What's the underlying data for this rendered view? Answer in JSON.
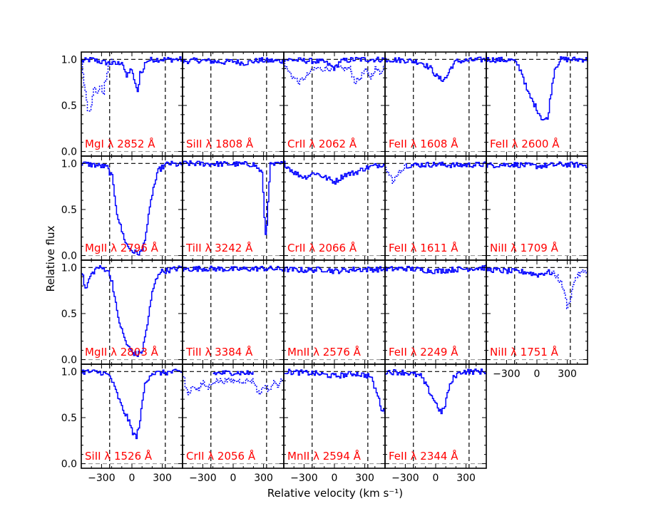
{
  "chart_data": {
    "type": "line",
    "xlabel": "Relative velocity (km s⁻¹)",
    "ylabel": "Relative flux",
    "xlim": [
      -500,
      500
    ],
    "ylim": [
      -0.05,
      1.08
    ],
    "x_ticks": [
      -300,
      0,
      300
    ],
    "x_tick_labels": [
      "−300",
      "0",
      "300"
    ],
    "y_ticks": [
      0.0,
      0.5,
      1.0
    ],
    "y_tick_labels": [
      "0.0",
      "0.5",
      "1.0"
    ],
    "integration_window_kms": [
      -220,
      330
    ],
    "continuum_level": 1.0,
    "series_color": "#0000ff",
    "label_color": "#ff0000",
    "panels": [
      {
        "label": "MgI λ 2852 Å",
        "row": 0,
        "col": 0,
        "profile": [
          [
            -500,
            0.98
          ],
          [
            -400,
            1.0
          ],
          [
            -300,
            0.97
          ],
          [
            -150,
            0.95
          ],
          [
            -100,
            0.98
          ],
          [
            -60,
            0.8
          ],
          [
            -20,
            0.9
          ],
          [
            20,
            0.78
          ],
          [
            50,
            0.62
          ],
          [
            80,
            0.9
          ],
          [
            100,
            0.85
          ],
          [
            130,
            0.98
          ],
          [
            200,
            1.0
          ],
          [
            500,
            1.0
          ]
        ],
        "contaminated": [
          [
            -500,
            0.95
          ],
          [
            -470,
            0.7
          ],
          [
            -440,
            0.45
          ],
          [
            -420,
            0.4
          ],
          [
            -400,
            0.55
          ],
          [
            -370,
            0.7
          ],
          [
            -340,
            0.62
          ],
          [
            -310,
            0.72
          ],
          [
            -290,
            0.6
          ],
          [
            -270,
            0.75
          ],
          [
            -240,
            0.92
          ],
          [
            -200,
            1.0
          ]
        ]
      },
      {
        "label": "SiII λ 1808 Å",
        "row": 0,
        "col": 1,
        "profile": [
          [
            -500,
            0.98
          ],
          [
            -350,
            0.99
          ],
          [
            -100,
            0.97
          ],
          [
            0,
            0.98
          ],
          [
            100,
            0.96
          ],
          [
            250,
            0.99
          ],
          [
            500,
            0.98
          ]
        ]
      },
      {
        "label": "CrII λ 2062 Å",
        "row": 0,
        "col": 2,
        "profile": [
          [
            -500,
            1.0
          ],
          [
            -200,
            0.98
          ],
          [
            -100,
            0.97
          ],
          [
            0,
            0.9
          ],
          [
            50,
            0.98
          ],
          [
            200,
            1.0
          ],
          [
            500,
            1.0
          ]
        ],
        "contaminated": [
          [
            -500,
            0.95
          ],
          [
            -450,
            0.85
          ],
          [
            -400,
            0.8
          ],
          [
            -350,
            0.75
          ],
          [
            -300,
            0.8
          ],
          [
            -250,
            0.85
          ],
          [
            -200,
            0.9
          ],
          [
            150,
            0.9
          ],
          [
            200,
            0.75
          ],
          [
            250,
            0.8
          ],
          [
            300,
            0.88
          ],
          [
            350,
            0.8
          ],
          [
            400,
            0.9
          ],
          [
            450,
            0.85
          ],
          [
            500,
            0.95
          ]
        ]
      },
      {
        "label": "FeII λ 1608 Å",
        "row": 0,
        "col": 3,
        "profile": [
          [
            -500,
            1.0
          ],
          [
            -300,
            0.99
          ],
          [
            -150,
            0.97
          ],
          [
            -50,
            0.9
          ],
          [
            0,
            0.82
          ],
          [
            50,
            0.78
          ],
          [
            100,
            0.8
          ],
          [
            150,
            0.92
          ],
          [
            200,
            0.98
          ],
          [
            500,
            1.0
          ]
        ]
      },
      {
        "label": "FeII λ 2600 Å",
        "row": 0,
        "col": 4,
        "profile": [
          [
            -500,
            1.0
          ],
          [
            -250,
            0.99
          ],
          [
            -200,
            0.95
          ],
          [
            -150,
            0.85
          ],
          [
            -100,
            0.65
          ],
          [
            -50,
            0.55
          ],
          [
            0,
            0.45
          ],
          [
            50,
            0.35
          ],
          [
            100,
            0.35
          ],
          [
            130,
            0.6
          ],
          [
            170,
            0.9
          ],
          [
            230,
            1.0
          ],
          [
            500,
            1.0
          ]
        ]
      },
      {
        "label": "MgII λ 2796 Å",
        "row": 1,
        "col": 0,
        "profile": [
          [
            -500,
            1.0
          ],
          [
            -350,
            0.98
          ],
          [
            -250,
            0.96
          ],
          [
            -200,
            0.85
          ],
          [
            -150,
            0.45
          ],
          [
            -100,
            0.25
          ],
          [
            -50,
            0.1
          ],
          [
            0,
            0.05
          ],
          [
            50,
            0.02
          ],
          [
            100,
            0.05
          ],
          [
            150,
            0.35
          ],
          [
            200,
            0.7
          ],
          [
            260,
            0.93
          ],
          [
            350,
            1.0
          ],
          [
            500,
            0.98
          ]
        ]
      },
      {
        "label": "TiII λ 3242 Å",
        "row": 1,
        "col": 1,
        "profile": [
          [
            -500,
            1.0
          ],
          [
            200,
            0.99
          ],
          [
            280,
            0.9
          ],
          [
            300,
            0.5
          ],
          [
            320,
            0.15
          ],
          [
            340,
            0.6
          ],
          [
            360,
            0.98
          ],
          [
            500,
            1.0
          ]
        ]
      },
      {
        "label": "CrII λ 2066 Å",
        "row": 1,
        "col": 2,
        "profile": [
          [
            -500,
            1.0
          ],
          [
            -400,
            0.9
          ],
          [
            -300,
            0.85
          ],
          [
            -200,
            0.9
          ],
          [
            -100,
            0.85
          ],
          [
            0,
            0.8
          ],
          [
            100,
            0.88
          ],
          [
            200,
            0.9
          ],
          [
            300,
            0.95
          ],
          [
            500,
            1.0
          ]
        ]
      },
      {
        "label": "FeII λ 1611 Å",
        "row": 1,
        "col": 3,
        "profile": [
          [
            -300,
            0.98
          ],
          [
            0,
            0.99
          ],
          [
            200,
            0.98
          ],
          [
            500,
            0.99
          ]
        ],
        "contaminated": [
          [
            -500,
            0.95
          ],
          [
            -450,
            0.85
          ],
          [
            -420,
            0.8
          ],
          [
            -380,
            0.88
          ],
          [
            -330,
            0.95
          ],
          [
            -300,
            0.97
          ]
        ]
      },
      {
        "label": "NiII λ 1709 Å",
        "row": 1,
        "col": 4,
        "profile": [
          [
            -500,
            0.98
          ],
          [
            -250,
            0.99
          ],
          [
            0,
            0.97
          ],
          [
            250,
            0.99
          ],
          [
            500,
            0.98
          ]
        ]
      },
      {
        "label": "MgII λ 2803 Å",
        "row": 2,
        "col": 0,
        "profile": [
          [
            -500,
            0.95
          ],
          [
            -460,
            0.75
          ],
          [
            -420,
            0.9
          ],
          [
            -350,
            1.0
          ],
          [
            -250,
            0.98
          ],
          [
            -200,
            0.85
          ],
          [
            -150,
            0.5
          ],
          [
            -100,
            0.3
          ],
          [
            -50,
            0.15
          ],
          [
            0,
            0.08
          ],
          [
            50,
            0.05
          ],
          [
            100,
            0.1
          ],
          [
            150,
            0.4
          ],
          [
            200,
            0.75
          ],
          [
            260,
            0.95
          ],
          [
            500,
            1.0
          ]
        ]
      },
      {
        "label": "TiII λ 3384 Å",
        "row": 2,
        "col": 1,
        "profile": [
          [
            -500,
            0.98
          ],
          [
            -300,
            0.99
          ],
          [
            0,
            0.98
          ],
          [
            300,
            0.99
          ],
          [
            500,
            0.98
          ]
        ]
      },
      {
        "label": "MnII λ 2576 Å",
        "row": 2,
        "col": 2,
        "profile": [
          [
            -500,
            0.98
          ],
          [
            -300,
            0.97
          ],
          [
            -100,
            0.98
          ],
          [
            0,
            0.96
          ],
          [
            200,
            0.98
          ],
          [
            500,
            0.98
          ]
        ]
      },
      {
        "label": "FeII λ 2249 Å",
        "row": 2,
        "col": 3,
        "profile": [
          [
            -500,
            0.98
          ],
          [
            -300,
            0.99
          ],
          [
            0,
            0.96
          ],
          [
            200,
            0.98
          ],
          [
            500,
            1.0
          ]
        ]
      },
      {
        "label": "NiII λ 1751 Å",
        "row": 2,
        "col": 4,
        "profile": [
          [
            -500,
            0.98
          ],
          [
            -300,
            0.96
          ],
          [
            -100,
            0.95
          ],
          [
            0,
            0.92
          ],
          [
            100,
            0.95
          ],
          [
            150,
            0.94
          ]
        ],
        "contaminated": [
          [
            150,
            0.94
          ],
          [
            200,
            0.9
          ],
          [
            250,
            0.8
          ],
          [
            300,
            0.55
          ],
          [
            340,
            0.75
          ],
          [
            380,
            0.9
          ],
          [
            450,
            0.95
          ],
          [
            500,
            0.98
          ]
        ]
      },
      {
        "label": "SiII λ 1526 Å",
        "row": 3,
        "col": 0,
        "profile": [
          [
            -500,
            1.0
          ],
          [
            -300,
            0.99
          ],
          [
            -220,
            0.95
          ],
          [
            -150,
            0.75
          ],
          [
            -100,
            0.6
          ],
          [
            -50,
            0.5
          ],
          [
            0,
            0.35
          ],
          [
            40,
            0.28
          ],
          [
            80,
            0.5
          ],
          [
            120,
            0.85
          ],
          [
            180,
            0.98
          ],
          [
            500,
            1.0
          ]
        ]
      },
      {
        "label": "CrII λ 2056 Å",
        "row": 3,
        "col": 1,
        "profile": [
          [
            -200,
            0.98
          ],
          [
            0,
            0.99
          ],
          [
            200,
            0.98
          ]
        ],
        "contaminated": [
          [
            -500,
            0.95
          ],
          [
            -450,
            0.75
          ],
          [
            -400,
            0.85
          ],
          [
            -350,
            0.8
          ],
          [
            -300,
            0.88
          ],
          [
            -250,
            0.82
          ],
          [
            -200,
            0.9
          ],
          [
            200,
            0.9
          ],
          [
            250,
            0.75
          ],
          [
            300,
            0.85
          ],
          [
            350,
            0.8
          ],
          [
            400,
            0.88
          ],
          [
            450,
            0.85
          ],
          [
            500,
            0.95
          ]
        ]
      },
      {
        "label": "MnII λ 2594 Å",
        "row": 3,
        "col": 2,
        "profile": [
          [
            -500,
            1.0
          ],
          [
            -200,
            0.98
          ],
          [
            0,
            0.95
          ],
          [
            200,
            0.98
          ],
          [
            350,
            0.95
          ],
          [
            420,
            0.75
          ],
          [
            460,
            0.6
          ],
          [
            500,
            0.55
          ]
        ]
      },
      {
        "label": "FeII λ 2344 Å",
        "row": 3,
        "col": 3,
        "profile": [
          [
            -500,
            1.0
          ],
          [
            -300,
            0.99
          ],
          [
            -150,
            0.95
          ],
          [
            -100,
            0.85
          ],
          [
            -50,
            0.75
          ],
          [
            0,
            0.65
          ],
          [
            50,
            0.55
          ],
          [
            80,
            0.6
          ],
          [
            120,
            0.8
          ],
          [
            180,
            0.95
          ],
          [
            250,
            1.0
          ],
          [
            500,
            1.0
          ]
        ]
      }
    ]
  }
}
